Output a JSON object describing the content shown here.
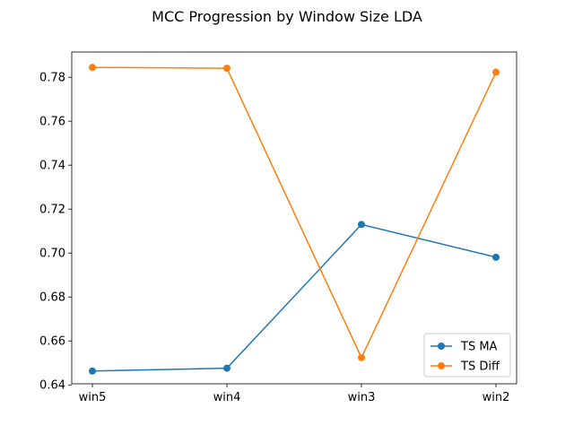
{
  "chart_data": {
    "type": "line",
    "title": "MCC Progression by Window Size LDA",
    "xlabel": "",
    "ylabel": "",
    "categories": [
      "win5",
      "win4",
      "win3",
      "win2"
    ],
    "ylim": [
      0.6405,
      0.7915
    ],
    "yticks": [
      "0.64",
      "0.66",
      "0.68",
      "0.70",
      "0.72",
      "0.74",
      "0.76",
      "0.78"
    ],
    "grid": false,
    "legend_position": "lower-right",
    "series": [
      {
        "name": "TS MA",
        "color": "#1f77b4",
        "marker": "circle",
        "values": [
          0.6463,
          0.6476,
          0.713,
          0.6981
        ]
      },
      {
        "name": "TS Diff",
        "color": "#ff7f0e",
        "marker": "circle",
        "values": [
          0.7845,
          0.7841,
          0.6524,
          0.7823
        ]
      }
    ]
  }
}
